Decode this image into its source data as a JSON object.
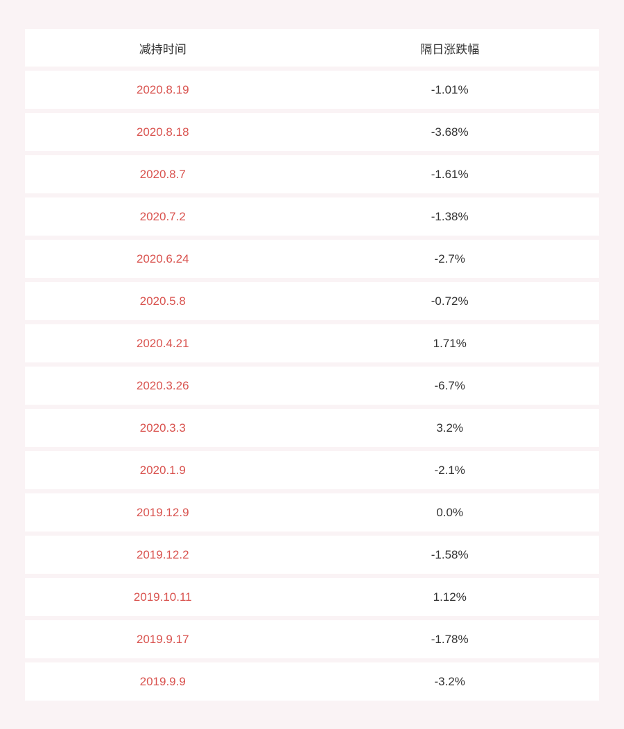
{
  "table": {
    "headers": {
      "date": "减持时间",
      "change": "隔日涨跌幅"
    },
    "rows": [
      {
        "date": "2020.8.19",
        "change": "-1.01%"
      },
      {
        "date": "2020.8.18",
        "change": "-3.68%"
      },
      {
        "date": "2020.8.7",
        "change": "-1.61%"
      },
      {
        "date": "2020.7.2",
        "change": "-1.38%"
      },
      {
        "date": "2020.6.24",
        "change": "-2.7%"
      },
      {
        "date": "2020.5.8",
        "change": "-0.72%"
      },
      {
        "date": "2020.4.21",
        "change": "1.71%"
      },
      {
        "date": "2020.3.26",
        "change": "-6.7%"
      },
      {
        "date": "2020.3.3",
        "change": "3.2%"
      },
      {
        "date": "2020.1.9",
        "change": "-2.1%"
      },
      {
        "date": "2019.12.9",
        "change": "0.0%"
      },
      {
        "date": "2019.12.2",
        "change": "-1.58%"
      },
      {
        "date": "2019.10.11",
        "change": "1.12%"
      },
      {
        "date": "2019.9.17",
        "change": "-1.78%"
      },
      {
        "date": "2019.9.9",
        "change": "-3.2%"
      }
    ],
    "colors": {
      "background": "#faf3f5",
      "row_background": "#ffffff",
      "date_text": "#d9534f",
      "value_text": "#333333",
      "header_text": "#333333"
    }
  }
}
